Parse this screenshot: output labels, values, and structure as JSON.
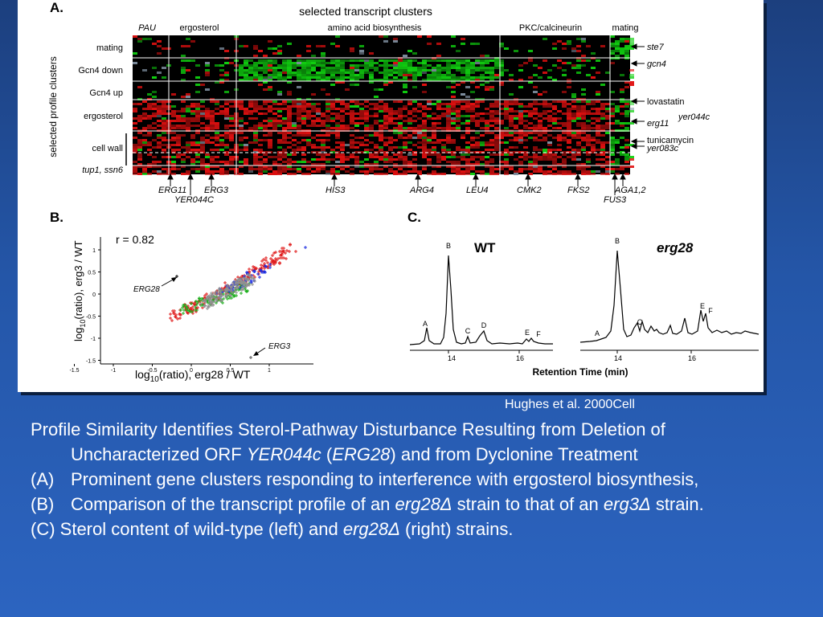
{
  "figure": {
    "panel_a": {
      "letter": "A.",
      "title": "selected transcript clusters",
      "y_axis_label": "selected profile clusters",
      "column_groups": [
        "PAU",
        "ergosterol",
        "amino acid biosynthesis",
        "PKC/calcineurin",
        "mating"
      ],
      "row_labels": [
        "mating",
        "Gcn4 down",
        "Gcn4 up",
        "ergosterol",
        "cell wall",
        "tup1, ssn6"
      ],
      "right_labels": [
        "ste7",
        "gcn4",
        "lovastatin",
        "erg11",
        "yer044c",
        "tunicamycin",
        "yer083c"
      ],
      "bottom_genes": [
        "ERG11",
        "YER044C",
        "ERG3",
        "HIS3",
        "ARG4",
        "LEU4",
        "CMK2",
        "FKS2",
        "AGA1,2",
        "FUS3"
      ],
      "colors": {
        "red": "#e01010",
        "green": "#10d010",
        "black": "#000000",
        "gray": "#7f8fa0"
      }
    },
    "panel_b": {
      "letter": "B.",
      "r_label": "r = 0.82",
      "ylabel_main": "log",
      "ylabel_sub": "10",
      "ylabel_rest": "(ratio), erg3 / WT",
      "xlabel_main": "log",
      "xlabel_sub": "10",
      "xlabel_rest": "(ratio), erg28 / WT",
      "y_ticks": [
        "1",
        "0.5",
        "0",
        "-0.5",
        "-1",
        "-1.5"
      ],
      "x_ticks": [
        "-1.5",
        "-1",
        "-0.5",
        "0",
        "0.5",
        "1"
      ],
      "annotations": [
        "ERG28",
        "ERG3"
      ],
      "colors": {
        "red": "#e02020",
        "green": "#20b020",
        "blue": "#2030e0",
        "gray": "#909090"
      }
    },
    "panel_c": {
      "letter": "C.",
      "wt_label": "WT",
      "mut_label": "erg28",
      "xlabel": "Retention Time (min)",
      "x_ticks_left": [
        "14",
        "16"
      ],
      "x_ticks_right": [
        "14",
        "16"
      ],
      "peaks_wt": [
        "A",
        "B",
        "C",
        "D",
        "E",
        "F"
      ],
      "peaks_mut": [
        "A",
        "B",
        "C",
        "E",
        "F"
      ]
    }
  },
  "citation": "Hughes et al. 2000Cell",
  "caption": {
    "title_1": "Profile Similarity Identifies Sterol-Pathway Disturbance Resulting from Deletion of Uncharacterized ORF ",
    "title_italic_1": "YER044c",
    "title_2": " (",
    "title_italic_2": "ERG28",
    "title_3": ") and from Dyclonine Treatment",
    "item_a_marker": "(A)",
    "item_a_text": "Prominent gene clusters responding to interference with ergosterol biosynthesis,",
    "item_b_marker": "(B)",
    "item_b_text_1": "Comparison of the transcript profile of an ",
    "item_b_italic_1": "erg28Δ",
    "item_b_text_2": " strain to that of an ",
    "item_b_italic_2": "erg3Δ",
    "item_b_text_3": " strain.",
    "item_c_text_1": "(C) Sterol content of wild-type (left) and ",
    "item_c_italic": "erg28Δ",
    "item_c_text_2": " (right) strains."
  }
}
